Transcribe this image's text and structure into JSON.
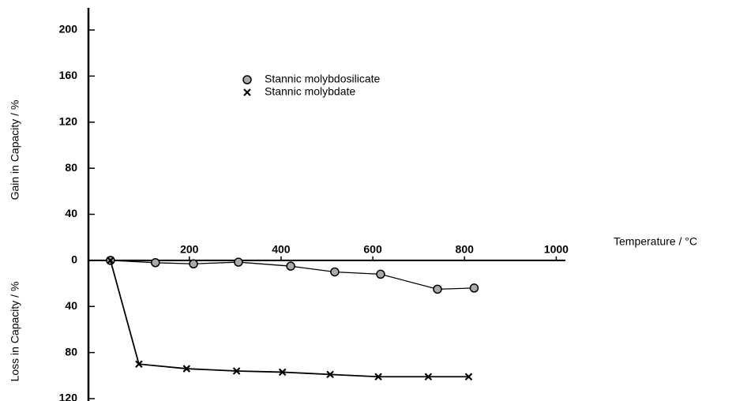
{
  "chart_data": {
    "type": "line",
    "xlabel": "Temperature / °C",
    "ylabel_top": "Gain in Capacity / %",
    "ylabel_bottom": "Loss in Capacity / %",
    "xlim": [
      -20,
      1020
    ],
    "xticks": [
      200,
      400,
      600,
      800,
      1000
    ],
    "ylim": [
      -120,
      200
    ],
    "yticks": [
      200,
      160,
      120,
      80,
      40,
      0,
      {
        "value": -40,
        "label": "40"
      },
      {
        "value": -80,
        "label": "80"
      },
      {
        "value": -120,
        "label": "120"
      }
    ],
    "x": [
      28,
      126,
      209,
      307,
      421,
      517,
      617,
      741,
      821
    ],
    "series": [
      {
        "name": "Stannic molybdosilicate",
        "color": "#000000",
        "marker": "circle",
        "x": [
          28,
          126,
          209,
          307,
          421,
          517,
          617,
          741,
          821
        ],
        "values": [
          0,
          -2,
          -3,
          -1.5,
          -5,
          -10,
          -12,
          -25,
          -24
        ]
      },
      {
        "name": "Stannic molybdate",
        "color": "#000000",
        "marker": "x",
        "x": [
          28,
          90,
          194,
          303,
          403,
          507,
          612,
          721,
          809
        ],
        "values": [
          0,
          -90,
          -94,
          -96,
          -97,
          -99,
          -101,
          -101,
          -101
        ]
      }
    ]
  }
}
